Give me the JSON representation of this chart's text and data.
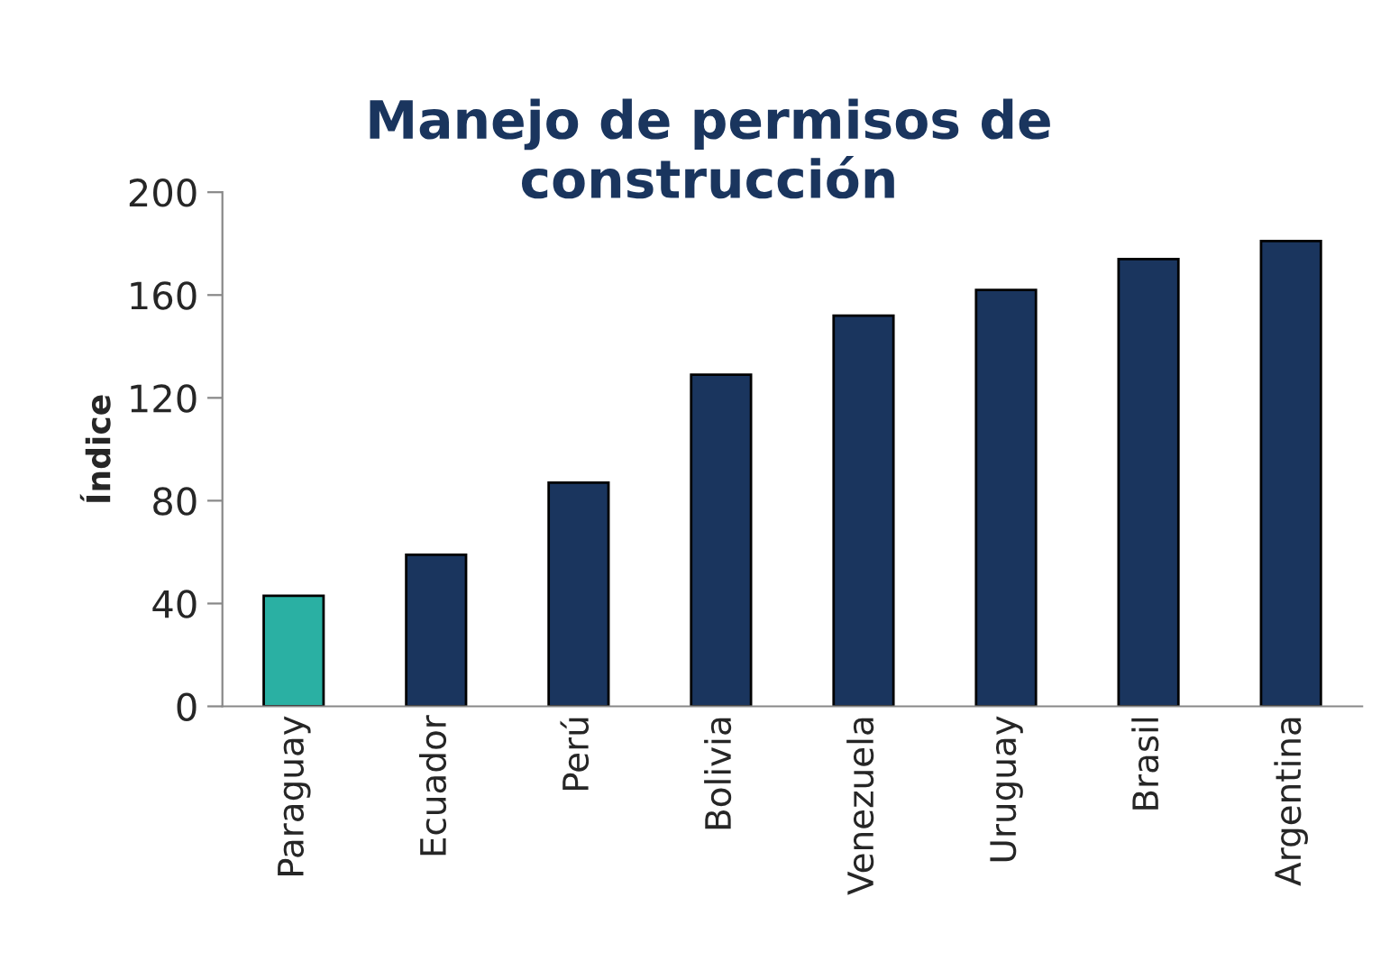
{
  "chart_data": {
    "type": "bar",
    "title": "Manejo de permisos de\nconstrucción",
    "ylabel": "Índice",
    "categories": [
      "Paraguay",
      "Ecuador",
      "Perú",
      "Bolivia",
      "Venezuela",
      "Uruguay",
      "Brasil",
      "Argentina"
    ],
    "values": [
      43,
      59,
      87,
      129,
      152,
      162,
      174,
      181
    ],
    "colors": [
      "#2ab0a3",
      "#1a355e",
      "#1a355e",
      "#1a355e",
      "#1a355e",
      "#1a355e",
      "#1a355e",
      "#1a355e"
    ],
    "ylim": [
      0,
      200
    ],
    "yticks": [
      0,
      40,
      80,
      120,
      160,
      200
    ],
    "grid": false,
    "legend": false
  }
}
